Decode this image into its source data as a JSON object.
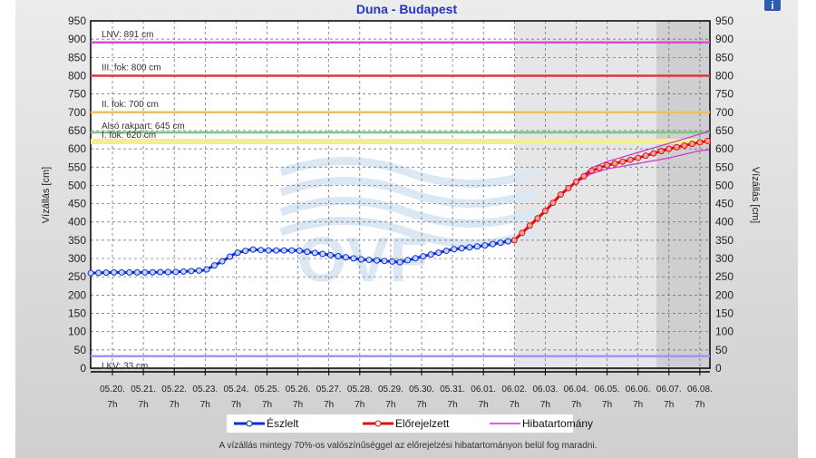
{
  "chart_data": {
    "type": "line",
    "title": "Duna - Budapest",
    "ylabel": "Vízállás [cm]",
    "ylabel_right": "Vízállás [cm]",
    "ylim": [
      0,
      950
    ],
    "yticks": [
      0,
      50,
      100,
      150,
      200,
      250,
      300,
      350,
      400,
      450,
      500,
      550,
      600,
      650,
      700,
      750,
      800,
      850,
      900,
      950
    ],
    "xticks": [
      "05.20.",
      "05.21.",
      "05.22.",
      "05.23.",
      "05.24.",
      "05.25.",
      "05.26.",
      "05.27.",
      "05.28.",
      "05.29.",
      "05.30.",
      "05.31.",
      "06.01.",
      "06.02.",
      "06.03.",
      "06.04.",
      "06.05.",
      "06.06.",
      "06.07.",
      "06.08."
    ],
    "xtick_sub": "7h",
    "grid": true,
    "thresholds": [
      {
        "label": "LNV: 891 cm",
        "value": 891,
        "color": "#d24fd2"
      },
      {
        "label": "III. fok: 800 cm",
        "value": 800,
        "color": "#d83a3a"
      },
      {
        "label": "II. fok: 700 cm",
        "value": 700,
        "color": "#f0c060"
      },
      {
        "label": "Alsó rakpart: 645 cm",
        "value": 645,
        "color": "#7cc77c"
      },
      {
        "label": "I. fok: 620 cm",
        "value": 620,
        "color": "#f3ef90"
      },
      {
        "label": "LKV: 33 cm",
        "value": 33,
        "color": "#9999ee"
      }
    ],
    "series": [
      {
        "name": "Észlelt",
        "color": "#0a2fd0",
        "days": [
          -0.7,
          0,
          1,
          2,
          3,
          3.5,
          4,
          4.5,
          5,
          6,
          7,
          8,
          9,
          9.3,
          10,
          11,
          12,
          13
        ],
        "values": [
          260,
          262,
          262,
          263,
          268,
          290,
          315,
          325,
          322,
          322,
          310,
          298,
          292,
          290,
          305,
          325,
          335,
          350
        ]
      },
      {
        "name": "Előrejelzett",
        "color": "#e01010",
        "days": [
          13,
          13.5,
          14,
          14.5,
          15,
          15.5,
          16,
          17,
          18,
          19,
          19.3
        ],
        "values": [
          350,
          390,
          430,
          475,
          510,
          540,
          555,
          575,
          600,
          618,
          622
        ]
      },
      {
        "name": "Hibatartomány",
        "color": "#cc33cc",
        "days": [
          15,
          15.5,
          16,
          17,
          18,
          19,
          19.3
        ],
        "upper": [
          512,
          548,
          565,
          590,
          615,
          640,
          648
        ],
        "lower": [
          508,
          532,
          545,
          560,
          575,
          595,
          597
        ]
      }
    ],
    "legend": "bottom",
    "note": "A vízállás mintegy 70%-os valószínűséggel az előrejelzési hibatartományon belül fog maradni."
  }
}
